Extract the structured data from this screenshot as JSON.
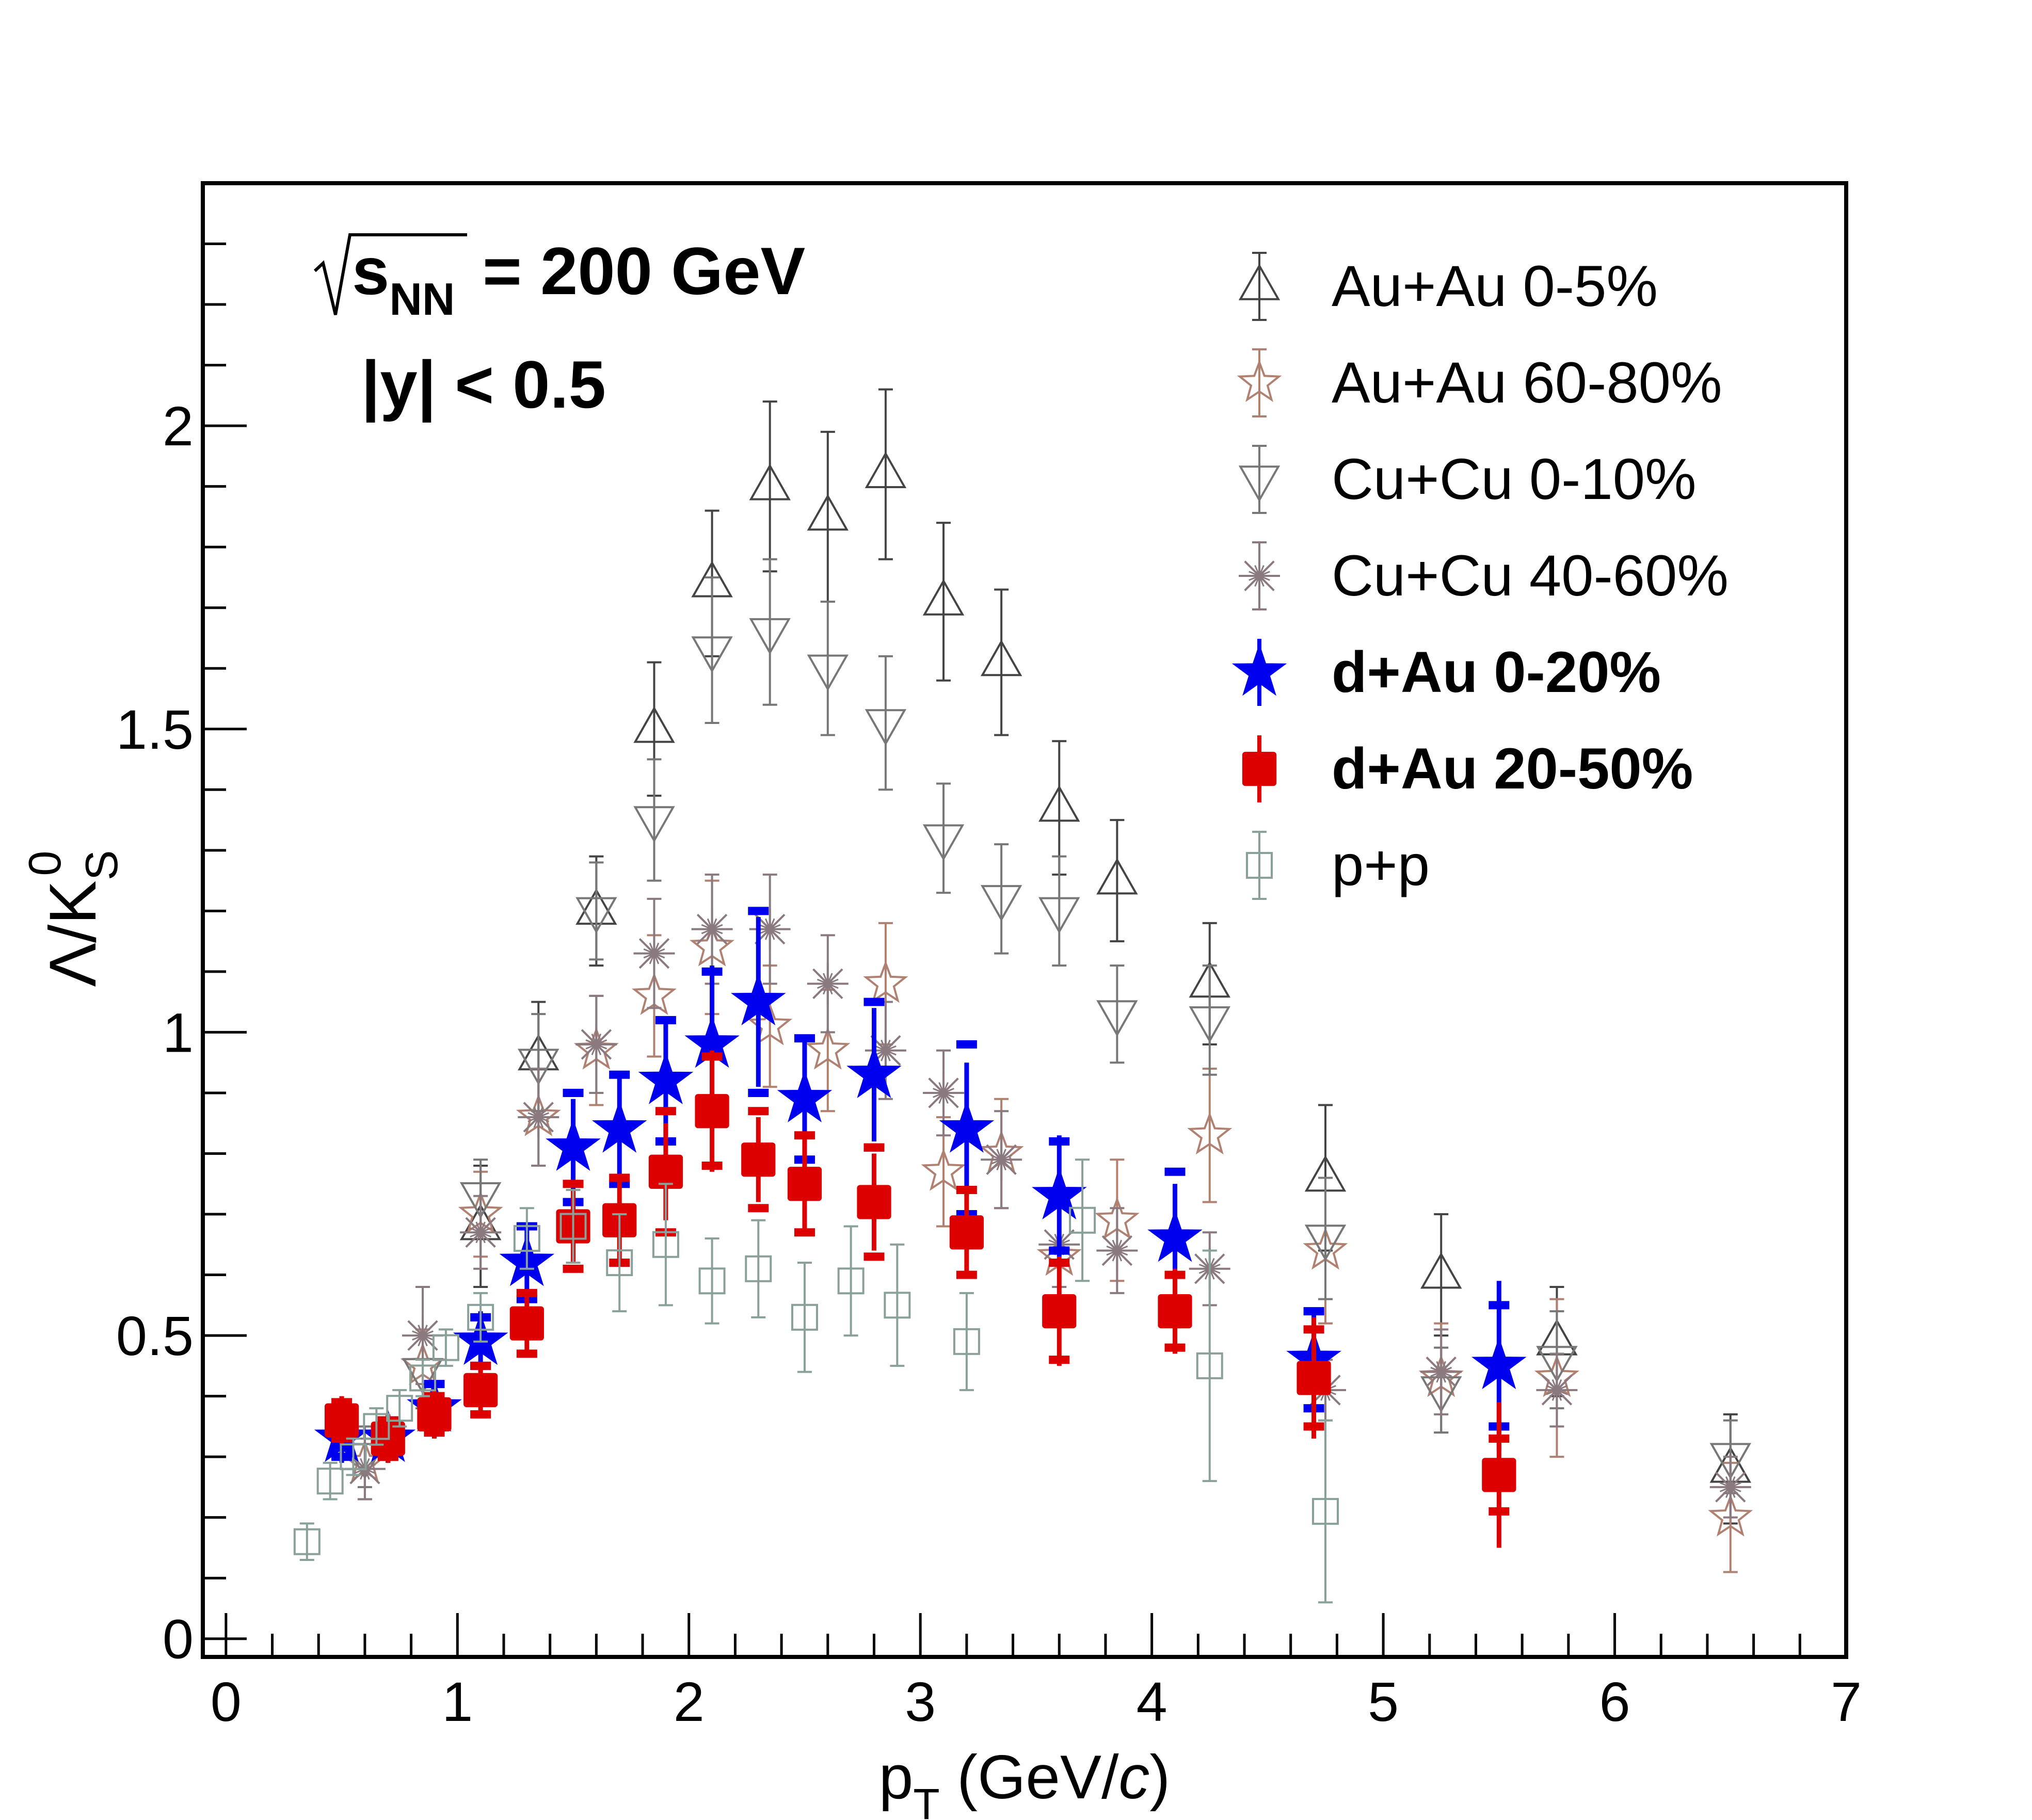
{
  "annotation": {
    "sqrt_s_symbol": "s",
    "sqrt_s_subscript": "NN",
    "energy_text": "= 200 GeV",
    "rapidity_text": "|y| < 0.5"
  },
  "chart_data": {
    "type": "scatter",
    "title": "",
    "xlabel": {
      "main": "p",
      "subscript": "T",
      "rest_open": " (GeV/",
      "italic": "c",
      "rest_close": ")"
    },
    "ylabel": {
      "main": "Λ/K",
      "subscript": "S",
      "superscript": "0"
    },
    "xlim": [
      -0.1,
      7
    ],
    "ylim": [
      -0.03,
      2.4
    ],
    "xticks": [
      0,
      1,
      2,
      3,
      4,
      5,
      6,
      7
    ],
    "xtick_labels": [
      "0",
      "1",
      "2",
      "3",
      "4",
      "5",
      "6",
      "7"
    ],
    "yticks": [
      0,
      0.5,
      1,
      1.5,
      2
    ],
    "ytick_labels": [
      "0",
      "0.5",
      "1",
      "1.5",
      "2"
    ],
    "grid": false,
    "legend_position": "top-right",
    "series": [
      {
        "name": "Au+Au 0-5%",
        "marker": "triangle-up-open",
        "color": "#444444",
        "bold": false,
        "points": [
          {
            "x": 1.1,
            "y": 0.68,
            "err": 0.1
          },
          {
            "x": 1.35,
            "y": 0.96,
            "err": 0.09
          },
          {
            "x": 1.6,
            "y": 1.2,
            "err": 0.09
          },
          {
            "x": 1.85,
            "y": 1.5,
            "err": 0.11
          },
          {
            "x": 2.1,
            "y": 1.74,
            "err": 0.12
          },
          {
            "x": 2.35,
            "y": 1.9,
            "err": 0.14
          },
          {
            "x": 2.6,
            "y": 1.85,
            "err": 0.14
          },
          {
            "x": 2.85,
            "y": 1.92,
            "err": 0.14
          },
          {
            "x": 3.1,
            "y": 1.71,
            "err": 0.13
          },
          {
            "x": 3.35,
            "y": 1.61,
            "err": 0.12
          },
          {
            "x": 3.6,
            "y": 1.37,
            "err": 0.11
          },
          {
            "x": 3.85,
            "y": 1.25,
            "err": 0.1
          },
          {
            "x": 4.25,
            "y": 1.08,
            "err": 0.1
          },
          {
            "x": 4.75,
            "y": 0.76,
            "err": 0.12
          },
          {
            "x": 5.25,
            "y": 0.6,
            "err": 0.1
          },
          {
            "x": 5.75,
            "y": 0.49,
            "err": 0.09
          },
          {
            "x": 6.5,
            "y": 0.28,
            "err": 0.09
          }
        ]
      },
      {
        "name": "Au+Au 60-80%",
        "marker": "star-open",
        "color": "#b08070",
        "bold": false,
        "points": [
          {
            "x": 0.6,
            "y": 0.29,
            "err": 0.06
          },
          {
            "x": 0.85,
            "y": 0.45,
            "err": 0.06
          },
          {
            "x": 1.1,
            "y": 0.7,
            "err": 0.07
          },
          {
            "x": 1.35,
            "y": 0.86,
            "err": 0.08
          },
          {
            "x": 1.6,
            "y": 0.97,
            "err": 0.09
          },
          {
            "x": 1.85,
            "y": 1.06,
            "err": 0.1
          },
          {
            "x": 2.1,
            "y": 1.14,
            "err": 0.11
          },
          {
            "x": 2.35,
            "y": 1.01,
            "err": 0.1
          },
          {
            "x": 2.6,
            "y": 0.97,
            "err": 0.1
          },
          {
            "x": 2.85,
            "y": 1.08,
            "err": 0.1
          },
          {
            "x": 3.1,
            "y": 0.77,
            "err": 0.09
          },
          {
            "x": 3.35,
            "y": 0.8,
            "err": 0.09
          },
          {
            "x": 3.6,
            "y": 0.63,
            "err": 0.09
          },
          {
            "x": 3.85,
            "y": 0.69,
            "err": 0.1
          },
          {
            "x": 4.25,
            "y": 0.83,
            "err": 0.11
          },
          {
            "x": 4.75,
            "y": 0.64,
            "err": 0.12
          },
          {
            "x": 5.25,
            "y": 0.43,
            "err": 0.09
          },
          {
            "x": 5.75,
            "y": 0.43,
            "err": 0.13
          },
          {
            "x": 6.5,
            "y": 0.2,
            "err": 0.09
          }
        ]
      },
      {
        "name": "Cu+Cu 0-10%",
        "marker": "triangle-down-open",
        "color": "#777777",
        "bold": false,
        "points": [
          {
            "x": 0.6,
            "y": 0.3,
            "err": 0.05
          },
          {
            "x": 0.85,
            "y": 0.44,
            "err": 0.06
          },
          {
            "x": 1.1,
            "y": 0.73,
            "err": 0.06
          },
          {
            "x": 1.35,
            "y": 0.95,
            "err": 0.08
          },
          {
            "x": 1.6,
            "y": 1.2,
            "err": 0.08
          },
          {
            "x": 1.85,
            "y": 1.35,
            "err": 0.1
          },
          {
            "x": 2.1,
            "y": 1.63,
            "err": 0.12
          },
          {
            "x": 2.35,
            "y": 1.66,
            "err": 0.12
          },
          {
            "x": 2.6,
            "y": 1.6,
            "err": 0.11
          },
          {
            "x": 2.85,
            "y": 1.51,
            "err": 0.11
          },
          {
            "x": 3.1,
            "y": 1.32,
            "err": 0.09
          },
          {
            "x": 3.35,
            "y": 1.22,
            "err": 0.09
          },
          {
            "x": 3.6,
            "y": 1.2,
            "err": 0.09
          },
          {
            "x": 3.85,
            "y": 1.03,
            "err": 0.08
          },
          {
            "x": 4.25,
            "y": 1.02,
            "err": 0.09
          },
          {
            "x": 4.75,
            "y": 0.66,
            "err": 0.1
          },
          {
            "x": 5.25,
            "y": 0.41,
            "err": 0.07
          },
          {
            "x": 5.75,
            "y": 0.46,
            "err": 0.08
          },
          {
            "x": 6.5,
            "y": 0.3,
            "err": 0.06
          }
        ]
      },
      {
        "name": "Cu+Cu 40-60%",
        "marker": "asterisk-open",
        "color": "#8a7a80",
        "bold": false,
        "points": [
          {
            "x": 0.6,
            "y": 0.28,
            "err": 0.05
          },
          {
            "x": 0.85,
            "y": 0.5,
            "err": 0.08
          },
          {
            "x": 1.1,
            "y": 0.67,
            "err": 0.06
          },
          {
            "x": 1.35,
            "y": 0.86,
            "err": 0.08
          },
          {
            "x": 1.6,
            "y": 0.98,
            "err": 0.08
          },
          {
            "x": 1.85,
            "y": 1.13,
            "err": 0.09
          },
          {
            "x": 2.1,
            "y": 1.17,
            "err": 0.09
          },
          {
            "x": 2.35,
            "y": 1.17,
            "err": 0.09
          },
          {
            "x": 2.6,
            "y": 1.08,
            "err": 0.08
          },
          {
            "x": 2.85,
            "y": 0.97,
            "err": 0.08
          },
          {
            "x": 3.1,
            "y": 0.9,
            "err": 0.07
          },
          {
            "x": 3.35,
            "y": 0.79,
            "err": 0.08
          },
          {
            "x": 3.6,
            "y": 0.65,
            "err": 0.07
          },
          {
            "x": 3.85,
            "y": 0.64,
            "err": 0.07
          },
          {
            "x": 4.25,
            "y": 0.61,
            "err": 0.06
          },
          {
            "x": 4.75,
            "y": 0.41,
            "err": 0.05
          },
          {
            "x": 5.25,
            "y": 0.44,
            "err": 0.07
          },
          {
            "x": 5.75,
            "y": 0.41,
            "err": 0.06
          },
          {
            "x": 6.5,
            "y": 0.25,
            "err": 0.05
          }
        ]
      },
      {
        "name": "d+Au 0-20%",
        "marker": "star-filled",
        "color": "#0000ee",
        "bold": true,
        "points": [
          {
            "x": 0.5,
            "y": 0.33,
            "err": 0.04,
            "sys": 0.03
          },
          {
            "x": 0.7,
            "y": 0.33,
            "err": 0.04,
            "sys": 0.03
          },
          {
            "x": 0.9,
            "y": 0.38,
            "err": 0.04,
            "sys": 0.04
          },
          {
            "x": 1.1,
            "y": 0.49,
            "err": 0.05,
            "sys": 0.04
          },
          {
            "x": 1.3,
            "y": 0.62,
            "err": 0.06,
            "sys": 0.06
          },
          {
            "x": 1.5,
            "y": 0.81,
            "err": 0.08,
            "sys": 0.09
          },
          {
            "x": 1.7,
            "y": 0.84,
            "err": 0.09,
            "sys": 0.09
          },
          {
            "x": 1.9,
            "y": 0.92,
            "err": 0.1,
            "sys": 0.1
          },
          {
            "x": 2.1,
            "y": 0.98,
            "err": 0.13,
            "sys": 0.12
          },
          {
            "x": 2.3,
            "y": 1.05,
            "err": 0.14,
            "sys": 0.15
          },
          {
            "x": 2.5,
            "y": 0.89,
            "err": 0.1,
            "sys": 0.1
          },
          {
            "x": 2.8,
            "y": 0.93,
            "err": 0.11,
            "sys": 0.12
          },
          {
            "x": 3.2,
            "y": 0.84,
            "err": 0.11,
            "sys": 0.14
          },
          {
            "x": 3.6,
            "y": 0.73,
            "err": 0.1,
            "sys": 0.09
          },
          {
            "x": 4.1,
            "y": 0.66,
            "err": 0.09,
            "sys": 0.11
          },
          {
            "x": 4.7,
            "y": 0.46,
            "err": 0.08,
            "sys": 0.08
          },
          {
            "x": 5.5,
            "y": 0.45,
            "err": 0.14,
            "sys": 0.1
          }
        ]
      },
      {
        "name": "d+Au 20-50%",
        "marker": "square-filled",
        "color": "#dd0000",
        "bold": true,
        "points": [
          {
            "x": 0.5,
            "y": 0.36,
            "err": 0.04,
            "sys": 0.03
          },
          {
            "x": 0.7,
            "y": 0.33,
            "err": 0.04,
            "sys": 0.03
          },
          {
            "x": 0.9,
            "y": 0.37,
            "err": 0.04,
            "sys": 0.03
          },
          {
            "x": 1.1,
            "y": 0.41,
            "err": 0.04,
            "sys": 0.04
          },
          {
            "x": 1.3,
            "y": 0.52,
            "err": 0.05,
            "sys": 0.05
          },
          {
            "x": 1.5,
            "y": 0.68,
            "err": 0.06,
            "sys": 0.07
          },
          {
            "x": 1.7,
            "y": 0.69,
            "err": 0.07,
            "sys": 0.07
          },
          {
            "x": 1.9,
            "y": 0.77,
            "err": 0.08,
            "sys": 0.1
          },
          {
            "x": 2.1,
            "y": 0.87,
            "err": 0.1,
            "sys": 0.09
          },
          {
            "x": 2.3,
            "y": 0.79,
            "err": 0.07,
            "sys": 0.08
          },
          {
            "x": 2.5,
            "y": 0.75,
            "err": 0.08,
            "sys": 0.08
          },
          {
            "x": 2.8,
            "y": 0.72,
            "err": 0.08,
            "sys": 0.09
          },
          {
            "x": 3.2,
            "y": 0.67,
            "err": 0.07,
            "sys": 0.07
          },
          {
            "x": 3.6,
            "y": 0.54,
            "err": 0.09,
            "sys": 0.08
          },
          {
            "x": 4.1,
            "y": 0.54,
            "err": 0.07,
            "sys": 0.06
          },
          {
            "x": 4.7,
            "y": 0.43,
            "err": 0.1,
            "sys": 0.08
          },
          {
            "x": 5.5,
            "y": 0.27,
            "err": 0.12,
            "sys": 0.06
          }
        ]
      },
      {
        "name": "p+p",
        "marker": "square-open",
        "color": "#8aa09a",
        "bold": false,
        "points": [
          {
            "x": 0.35,
            "y": 0.16,
            "err": 0.03
          },
          {
            "x": 0.45,
            "y": 0.26,
            "err": 0.03
          },
          {
            "x": 0.55,
            "y": 0.3,
            "err": 0.03
          },
          {
            "x": 0.65,
            "y": 0.35,
            "err": 0.03
          },
          {
            "x": 0.75,
            "y": 0.38,
            "err": 0.03
          },
          {
            "x": 0.85,
            "y": 0.43,
            "err": 0.03
          },
          {
            "x": 0.95,
            "y": 0.48,
            "err": 0.03
          },
          {
            "x": 1.1,
            "y": 0.53,
            "err": 0.04
          },
          {
            "x": 1.3,
            "y": 0.66,
            "err": 0.05
          },
          {
            "x": 1.5,
            "y": 0.68,
            "err": 0.06
          },
          {
            "x": 1.7,
            "y": 0.62,
            "err": 0.08
          },
          {
            "x": 1.9,
            "y": 0.65,
            "err": 0.1
          },
          {
            "x": 2.1,
            "y": 0.59,
            "err": 0.07
          },
          {
            "x": 2.3,
            "y": 0.61,
            "err": 0.08
          },
          {
            "x": 2.5,
            "y": 0.53,
            "err": 0.09
          },
          {
            "x": 2.7,
            "y": 0.59,
            "err": 0.09
          },
          {
            "x": 2.9,
            "y": 0.55,
            "err": 0.1
          },
          {
            "x": 3.2,
            "y": 0.49,
            "err": 0.08
          },
          {
            "x": 3.7,
            "y": 0.69,
            "err": 0.1
          },
          {
            "x": 4.25,
            "y": 0.45,
            "err": 0.19
          },
          {
            "x": 4.75,
            "y": 0.21,
            "err": 0.15
          }
        ]
      }
    ]
  }
}
